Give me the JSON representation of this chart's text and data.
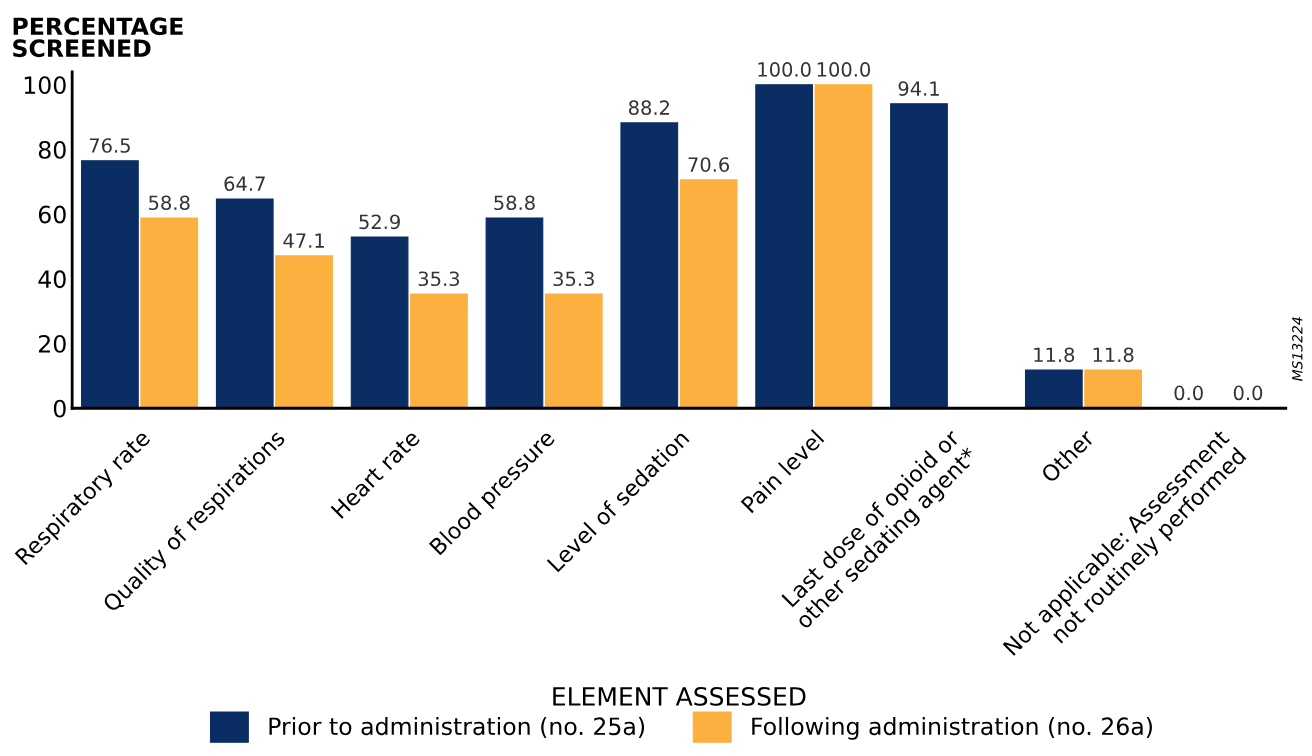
{
  "chart_data": {
    "type": "bar",
    "ylabel": "PERCENTAGE\nSCREENED",
    "xlabel": "ELEMENT ASSESSED",
    "categories": [
      "Respiratory rate",
      "Quality of respirations",
      "Heart rate",
      "Blood pressure",
      "Level of sedation",
      "Pain level",
      "Last dose of opioid or\nother sedating agent*",
      "Other",
      "Not applicable: Assessment\nnot routinely performed"
    ],
    "series": [
      {
        "name": "Prior to administration (no. 25a)",
        "color": "#0a2d63",
        "values": [
          76.5,
          64.7,
          52.9,
          58.8,
          88.2,
          100.0,
          94.1,
          11.8,
          0.0
        ],
        "value_labels": [
          "76.5",
          "64.7",
          "52.9",
          "58.8",
          "88.2",
          "100.0",
          "94.1",
          "11.8",
          "0.0"
        ]
      },
      {
        "name": "Following administration (no. 26a)",
        "color": "#fbb040",
        "values": [
          58.8,
          47.1,
          35.3,
          35.3,
          70.6,
          100.0,
          null,
          11.8,
          0.0
        ],
        "value_labels": [
          "58.8",
          "47.1",
          "35.3",
          "35.3",
          "70.6",
          "100.0",
          null,
          "11.8",
          "0.0"
        ]
      }
    ],
    "ylim": [
      0,
      104
    ],
    "yticks": [
      0,
      20,
      40,
      60,
      80,
      100
    ],
    "grid": false,
    "legend": "bottom",
    "annotations": [
      "MS13224"
    ]
  }
}
